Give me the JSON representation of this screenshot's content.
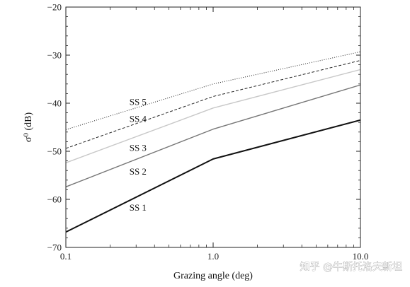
{
  "chart_data": {
    "type": "line",
    "title": "",
    "xlabel": "Grazing angle (deg)",
    "ylabel": "σ⁰ (dB)",
    "x_scale": "log",
    "xlim": [
      0.1,
      10.0
    ],
    "ylim": [
      -70,
      -20
    ],
    "x_ticks": [
      {
        "value": 0.1,
        "label": "0.1"
      },
      {
        "value": 1.0,
        "label": "1.0"
      },
      {
        "value": 10.0,
        "label": "10.0"
      }
    ],
    "y_ticks": [
      {
        "value": -20,
        "label": "−20"
      },
      {
        "value": -30,
        "label": "−30"
      },
      {
        "value": -40,
        "label": "−40"
      },
      {
        "value": -50,
        "label": "−50"
      },
      {
        "value": -60,
        "label": "−60"
      },
      {
        "value": -70,
        "label": "−70"
      }
    ],
    "grid": false,
    "series": [
      {
        "name": "SS 1",
        "color": "#111111",
        "line_style": "solid-thick",
        "x": [
          0.1,
          1.0,
          10.0
        ],
        "y": [
          -66.8,
          -51.6,
          -43.5
        ],
        "label_at": [
          0.27,
          -61.7
        ]
      },
      {
        "name": "SS 2",
        "color": "#777777",
        "line_style": "solid",
        "x": [
          0.1,
          1.0,
          10.0
        ],
        "y": [
          -57.4,
          -45.4,
          -36.2
        ],
        "label_at": [
          0.27,
          -54.2
        ]
      },
      {
        "name": "SS 3",
        "color": "#c8c8c8",
        "line_style": "solid",
        "x": [
          0.1,
          1.0,
          10.0
        ],
        "y": [
          -52.4,
          -41.0,
          -33.0
        ],
        "label_at": [
          0.27,
          -49.3
        ]
      },
      {
        "name": "SS 4",
        "color": "#222222",
        "line_style": "dashed",
        "x": [
          0.1,
          1.0,
          10.0
        ],
        "y": [
          -49.4,
          -38.6,
          -31.1
        ],
        "label_at": [
          0.27,
          -43.2
        ]
      },
      {
        "name": "SS 5",
        "color": "#222222",
        "line_style": "dotted",
        "x": [
          0.1,
          1.0,
          10.0
        ],
        "y": [
          -45.5,
          -36.0,
          -29.3
        ],
        "label_at": [
          0.27,
          -39.7
        ]
      }
    ]
  },
  "watermark": {
    "text": "知乎 @牛斯托洛夫新坦"
  }
}
